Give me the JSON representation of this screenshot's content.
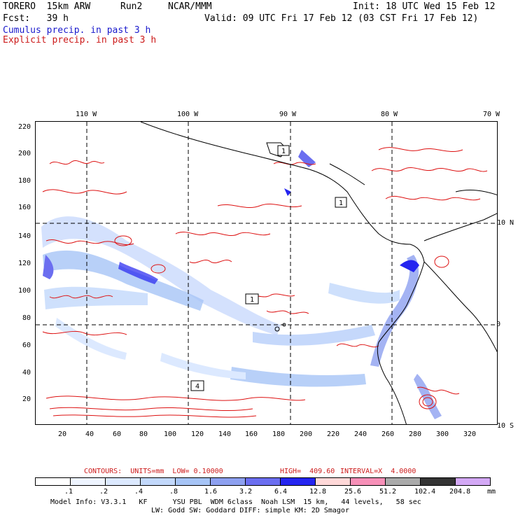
{
  "header": {
    "model": "TORERO  15km ARW",
    "run": "Run2",
    "org": "NCAR/MMM",
    "init": "Init: 18 UTC Wed 15 Feb 12",
    "fcst": "Fcst:   39 h",
    "valid": "Valid: 09 UTC Fri 17 Feb 12 (03 CST Fri 17 Feb 12)",
    "cumulus": "Cumulus precip. in past 3 h",
    "explicit": "Explicit precip. in past 3 h"
  },
  "map": {
    "lon_top": [
      "110 W",
      "100 W",
      "90 W",
      "80 W",
      "70 W"
    ],
    "lat_right": [
      "10 N",
      "0",
      "10 S"
    ],
    "y_ticks": [
      "220",
      "200",
      "180",
      "160",
      "140",
      "120",
      "100",
      "80",
      "60",
      "40",
      "20"
    ],
    "x_ticks": [
      "20",
      "40",
      "60",
      "80",
      "100",
      "120",
      "140",
      "160",
      "180",
      "200",
      "220",
      "240",
      "260",
      "280",
      "300",
      "320"
    ],
    "boxed_labels": [
      "1",
      "1",
      "1",
      "4"
    ]
  },
  "contour_info": {
    "label": "CONTOURS:  UNITS=mm  LOW= 0.10000",
    "high": "HIGH=  409.60",
    "interval": "INTERVAL=X  4.0000"
  },
  "colorbar": {
    "labels": [
      ".1",
      ".2",
      ".4",
      ".8",
      "1.6",
      "3.2",
      "6.4",
      "12.8",
      "25.6",
      "51.2",
      "102.4",
      "204.8"
    ],
    "unit": "mm",
    "colors": [
      "#ffffff",
      "#eef4ff",
      "#dce9ff",
      "#c2d8fb",
      "#a6c4f6",
      "#8da0f0",
      "#6b6ef0",
      "#2424f0",
      "#ffd8d8",
      "#f790b8",
      "#aaaaaa",
      "#333333",
      "#d3a8f5"
    ]
  },
  "footer": {
    "line1": "Model Info: V3.3.1   KF      YSU PBL  WDM 6class  Noah LSM  15 km,   44 levels,   58 sec",
    "line2": "LW: Godd SW: Goddard DIFF: simple KM: 2D Smagor"
  }
}
